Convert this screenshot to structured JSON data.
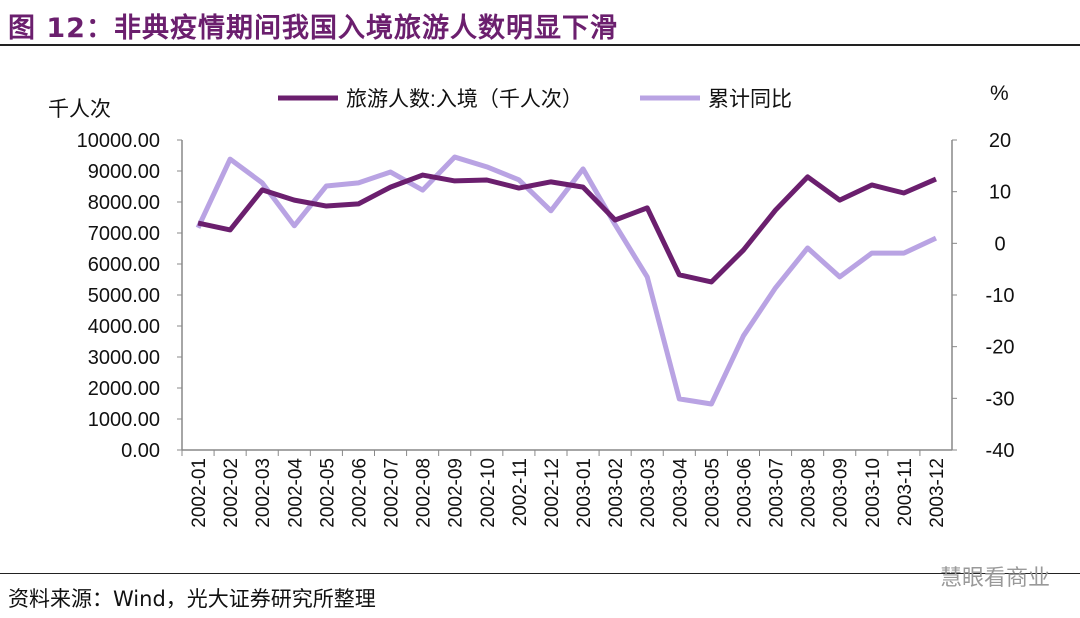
{
  "title": "图 12：非典疫情期间我国入境旅游人数明显下滑",
  "source": "资料来源：Wind，光大证券研究所整理",
  "watermark": "慧眼看商业",
  "colors": {
    "primary": "#6b1f6e",
    "secondary": "#b9a3e3"
  },
  "chart_data": {
    "type": "line",
    "x": [
      "2002-01",
      "2002-02",
      "2002-03",
      "2002-04",
      "2002-05",
      "2002-06",
      "2002-07",
      "2002-08",
      "2002-09",
      "2002-10",
      "2002-11",
      "2002-12",
      "2003-01",
      "2003-02",
      "2003-03",
      "2003-04",
      "2003-05",
      "2003-06",
      "2003-07",
      "2003-08",
      "2003-09",
      "2003-10",
      "2003-11",
      "2003-12"
    ],
    "series": [
      {
        "name": "旅游人数:入境（千人次）",
        "axis": "left",
        "values": [
          7320,
          7100,
          8390,
          8060,
          7870,
          7940,
          8480,
          8870,
          8680,
          8710,
          8450,
          8650,
          8480,
          7420,
          7810,
          5650,
          5420,
          6450,
          7740,
          8810,
          8060,
          8550,
          8290,
          8740
        ]
      },
      {
        "name": "累计同比",
        "axis": "right",
        "values": [
          3.0,
          16.3,
          11.7,
          3.4,
          11.1,
          11.7,
          13.8,
          10.3,
          16.7,
          14.8,
          12.3,
          6.3,
          14.4,
          3.6,
          -6.5,
          -30.1,
          -31.1,
          -17.9,
          -8.6,
          -0.9,
          -6.5,
          -1.9,
          -1.9,
          1.0
        ]
      }
    ],
    "ylabel": "千人次",
    "y2label": "%",
    "ylim": [
      0,
      10000
    ],
    "y2lim": [
      -40,
      20
    ],
    "yticks": [
      "0.00",
      "1000.00",
      "2000.00",
      "3000.00",
      "4000.00",
      "5000.00",
      "6000.00",
      "7000.00",
      "8000.00",
      "9000.00",
      "10000.00"
    ],
    "y2ticks": [
      "-40",
      "-30",
      "-20",
      "-10",
      "0",
      "10",
      "20"
    ],
    "legend": "top"
  }
}
